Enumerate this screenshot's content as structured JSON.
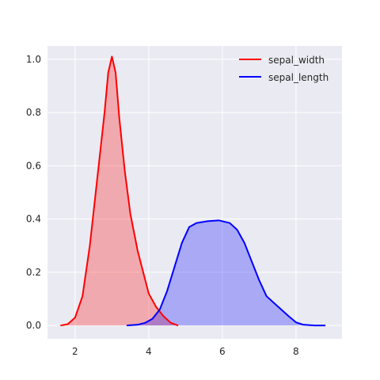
{
  "chart_data": {
    "type": "area",
    "xlim": [
      1.25,
      9.25
    ],
    "ylim": [
      -0.05,
      1.05
    ],
    "xticks": [
      2,
      4,
      6,
      8
    ],
    "xtick_labels": [
      "2",
      "4",
      "6",
      "8"
    ],
    "yticks": [
      0.0,
      0.2,
      0.4,
      0.6,
      0.8,
      1.0
    ],
    "ytick_labels": [
      "0.0",
      "0.2",
      "0.4",
      "0.6",
      "0.8",
      "1.0"
    ],
    "grid": true,
    "legend": "upper-right",
    "series": [
      {
        "name": "sepal_width",
        "color": "#ff0000",
        "fill": "#f2b1b8",
        "points": [
          [
            1.6,
            0.0
          ],
          [
            1.8,
            0.005
          ],
          [
            2.0,
            0.03
          ],
          [
            2.2,
            0.11
          ],
          [
            2.4,
            0.3
          ],
          [
            2.6,
            0.55
          ],
          [
            2.8,
            0.8
          ],
          [
            2.9,
            0.95
          ],
          [
            3.0,
            1.01
          ],
          [
            3.1,
            0.95
          ],
          [
            3.2,
            0.78
          ],
          [
            3.35,
            0.58
          ],
          [
            3.5,
            0.42
          ],
          [
            3.7,
            0.28
          ],
          [
            3.85,
            0.2
          ],
          [
            4.0,
            0.12
          ],
          [
            4.2,
            0.07
          ],
          [
            4.4,
            0.035
          ],
          [
            4.6,
            0.01
          ],
          [
            4.8,
            0.0
          ]
        ]
      },
      {
        "name": "sepal_length",
        "color": "#0000ff",
        "fill": "#b0b0f5",
        "points": [
          [
            3.4,
            0.0
          ],
          [
            3.7,
            0.003
          ],
          [
            3.9,
            0.01
          ],
          [
            4.1,
            0.025
          ],
          [
            4.3,
            0.06
          ],
          [
            4.5,
            0.13
          ],
          [
            4.7,
            0.22
          ],
          [
            4.9,
            0.31
          ],
          [
            5.1,
            0.37
          ],
          [
            5.3,
            0.385
          ],
          [
            5.6,
            0.392
          ],
          [
            5.9,
            0.395
          ],
          [
            6.2,
            0.385
          ],
          [
            6.4,
            0.36
          ],
          [
            6.6,
            0.31
          ],
          [
            6.8,
            0.24
          ],
          [
            7.0,
            0.17
          ],
          [
            7.2,
            0.11
          ],
          [
            7.4,
            0.085
          ],
          [
            7.6,
            0.06
          ],
          [
            7.8,
            0.035
          ],
          [
            8.0,
            0.012
          ],
          [
            8.2,
            0.003
          ],
          [
            8.5,
            0.0
          ],
          [
            8.8,
            0.0
          ]
        ]
      }
    ]
  }
}
